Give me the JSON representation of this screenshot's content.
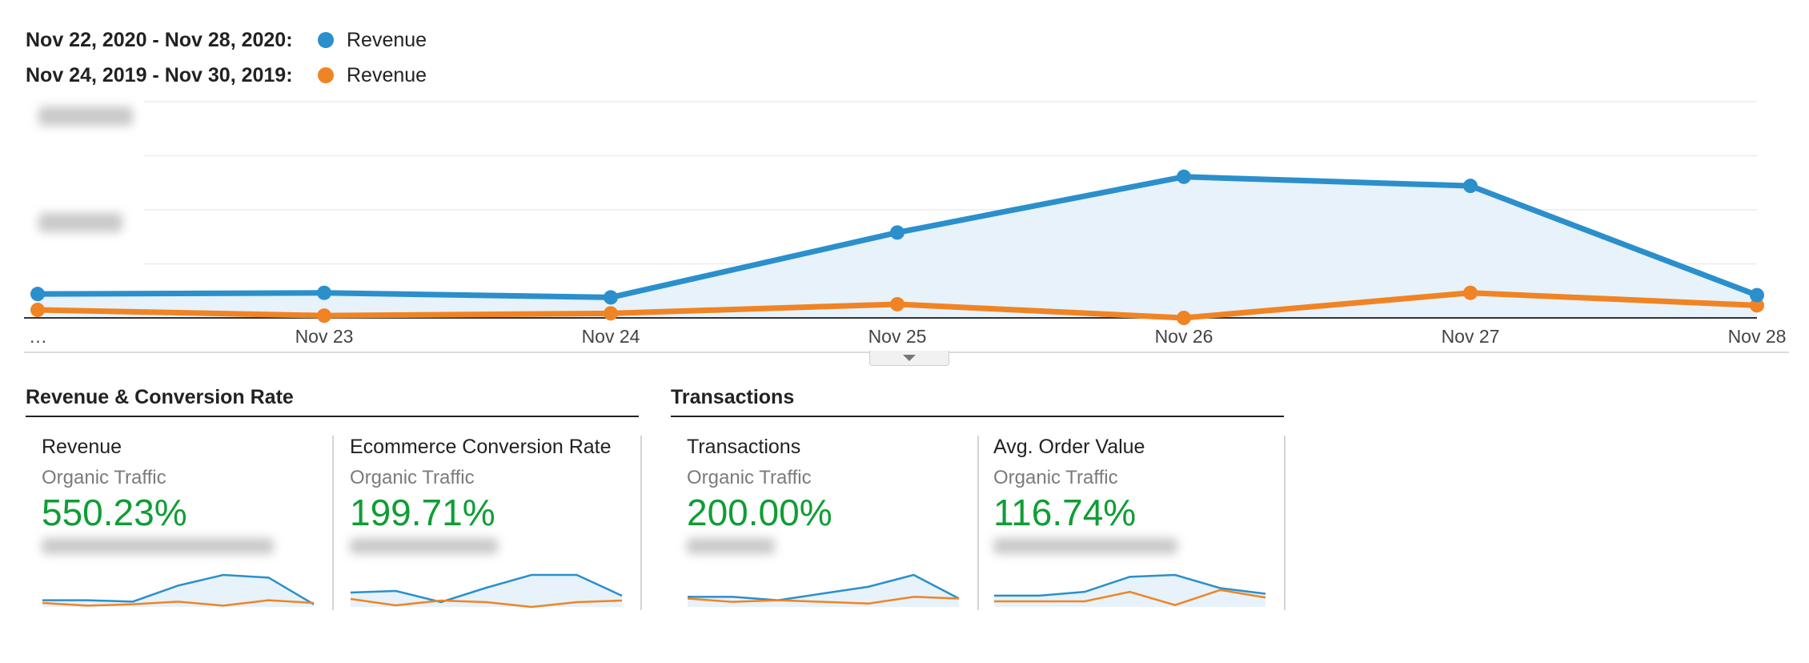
{
  "legend": [
    {
      "period": "Nov 22, 2020 - Nov 28, 2020:",
      "metric": "Revenue",
      "color": "#2b8fcc"
    },
    {
      "period": "Nov 24, 2019 - Nov 30, 2019:",
      "metric": "Revenue",
      "color": "#f08424"
    }
  ],
  "chart_data": {
    "type": "line",
    "x": [
      "…",
      "Nov 23",
      "Nov 24",
      "Nov 25",
      "Nov 26",
      "Nov 27",
      "Nov 28"
    ],
    "series": [
      {
        "name": "Revenue",
        "period": "Nov 22, 2020 - Nov 28, 2020",
        "color": "#2b8fcc",
        "values": [
          21,
          22,
          18,
          75,
          124,
          116,
          20
        ]
      },
      {
        "name": "Revenue",
        "period": "Nov 24, 2019 - Nov 30, 2019",
        "color": "#f08424",
        "values": [
          7,
          2,
          4,
          12,
          0,
          22,
          11
        ]
      }
    ],
    "ylim": [
      0,
      190
    ],
    "grid": true,
    "legend_position": "top-left",
    "y_tick_labels_obscured": true
  },
  "sections": [
    {
      "title": "Revenue & Conversion Rate"
    },
    {
      "title": "Transactions"
    }
  ],
  "cards": [
    {
      "metric": "Revenue",
      "segment": "Organic Traffic",
      "value": "550.23%",
      "spark_current": [
        5,
        5,
        4,
        16,
        24,
        22,
        2
      ],
      "spark_previous": [
        3,
        1,
        2,
        4,
        1,
        5,
        3
      ]
    },
    {
      "metric": "Ecommerce Conversion Rate",
      "segment": "Organic Traffic",
      "value": "199.71%",
      "spark_current": [
        9,
        10,
        3,
        12,
        20,
        20,
        7
      ],
      "spark_previous": [
        5,
        1,
        4,
        3,
        0,
        3,
        4
      ]
    },
    {
      "metric": "Transactions",
      "segment": "Organic Traffic",
      "value": "200.00%",
      "spark_current": [
        6,
        6,
        4,
        8,
        12,
        19,
        5
      ],
      "spark_previous": [
        5,
        3,
        4,
        3,
        2,
        6,
        5
      ]
    },
    {
      "metric": "Avg. Order Value",
      "segment": "Organic Traffic",
      "value": "116.74%",
      "spark_current": [
        6,
        6,
        8,
        16,
        17,
        10,
        7
      ],
      "spark_previous": [
        3,
        3,
        3,
        8,
        1,
        9,
        5
      ]
    }
  ]
}
